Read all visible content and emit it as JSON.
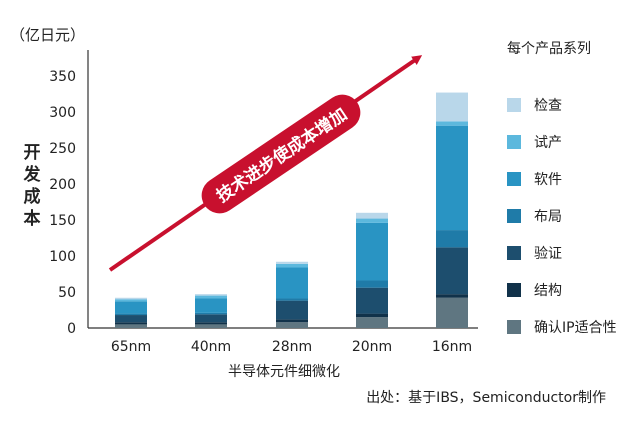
{
  "chart_data": {
    "type": "bar",
    "stacked": true,
    "y_unit_label": "（亿日元）",
    "ylabel": "开发成本",
    "xlabel": "半导体元件细微化",
    "ylim": [
      0,
      375
    ],
    "yticks": [
      0,
      50,
      100,
      150,
      200,
      250,
      300,
      350
    ],
    "categories": [
      "65nm",
      "40nm",
      "28nm",
      "20nm",
      "16nm"
    ],
    "legend_title": "每个产品系列",
    "series": [
      {
        "name": "确认IP适合性",
        "color": "#5f7681",
        "values": [
          5,
          5,
          8,
          15,
          42
        ]
      },
      {
        "name": "结构",
        "color": "#11324a",
        "values": [
          3,
          3,
          4,
          5,
          5
        ]
      },
      {
        "name": "验证",
        "color": "#1d4e6e",
        "values": [
          10,
          11,
          26,
          36,
          65
        ]
      },
      {
        "name": "布局",
        "color": "#1f7ba8",
        "values": [
          2,
          2,
          3,
          10,
          24
        ]
      },
      {
        "name": "软件",
        "color": "#2994c3",
        "values": [
          17,
          20,
          43,
          80,
          145
        ]
      },
      {
        "name": "试产",
        "color": "#5cb8dd",
        "values": [
          3,
          4,
          5,
          6,
          6
        ]
      },
      {
        "name": "检查",
        "color": "#b9d7ea",
        "values": [
          2,
          2,
          3,
          8,
          40
        ]
      }
    ],
    "annotation": {
      "text": "技术进步使成本增加",
      "color": "#c8102e"
    },
    "source": "出处：基于IBS，Semiconductor制作",
    "grid": false,
    "legend_position": "right"
  }
}
